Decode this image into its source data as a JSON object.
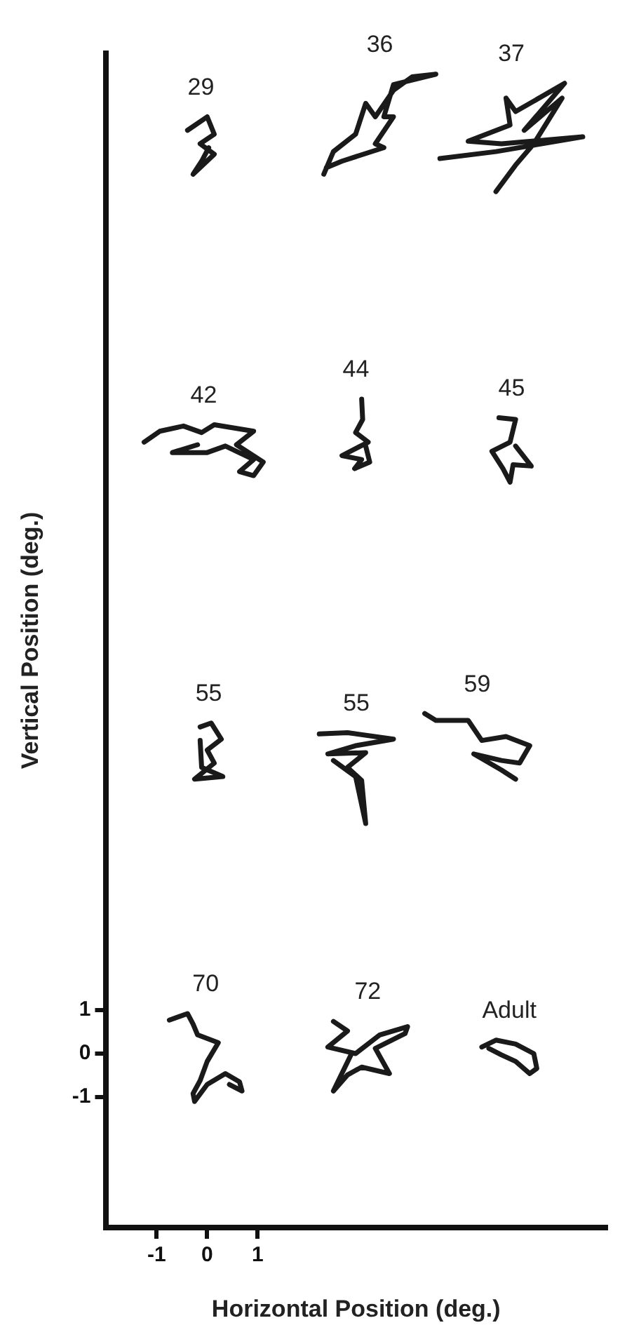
{
  "chart_data": {
    "type": "line",
    "xlabel": "Horizontal Position (deg.)",
    "ylabel": "Vertical Position (deg.)",
    "xlim": [
      -2,
      7.9
    ],
    "ylim": [
      -4,
      23
    ],
    "xticks": [
      -1,
      0,
      1
    ],
    "yticks": [
      -1,
      0,
      1
    ],
    "grid": false,
    "legend": false,
    "marker": "none",
    "line_style": "solid",
    "series": [
      {
        "name": "29",
        "color": "#1a1a1a",
        "x": [
          -0.39,
          0,
          0.14,
          -0.14,
          0.14,
          -0.28,
          -0.11,
          0.03
        ],
        "values": [
          21.23,
          21.54,
          21.14,
          20.92,
          20.68,
          20.22,
          20.52,
          20.83
        ]
      },
      {
        "name": "36",
        "color": "#1a1a1a",
        "x": [
          2.31,
          2.5,
          2.94,
          3.14,
          3.33,
          3.69,
          4.06,
          4.53,
          3.69,
          3.5,
          3.69,
          3.33,
          3.5,
          2.67,
          2.36
        ],
        "values": [
          20.22,
          20.74,
          21.14,
          21.85,
          21.54,
          22.15,
          22.46,
          22.52,
          22.28,
          21.54,
          21.54,
          20.92,
          20.83,
          20.52,
          20.37
        ]
      },
      {
        "name": "37",
        "color": "#1a1a1a",
        "x": [
          4.61,
          5.72,
          7.44,
          5.83,
          5.17,
          6.0,
          5.92,
          6.11,
          7.08,
          6.28,
          7.03,
          6.47,
          6.11,
          5.72
        ],
        "values": [
          20.58,
          20.74,
          21.08,
          20.92,
          20.98,
          21.35,
          21.97,
          21.66,
          22.31,
          21.23,
          21.97,
          20.92,
          20.43,
          19.82
        ]
      },
      {
        "name": "42",
        "color": "#1a1a1a",
        "x": [
          -1.25,
          -0.94,
          -0.47,
          -0.11,
          0.14,
          0.92,
          0.58,
          1.11,
          0.92,
          0.64,
          0.92,
          0.36,
          0,
          -0.69,
          -0.19
        ],
        "values": [
          14.06,
          14.31,
          14.43,
          14.28,
          14.46,
          14.31,
          14.0,
          13.6,
          13.29,
          13.38,
          13.66,
          13.97,
          13.82,
          13.82,
          14.0
        ]
      },
      {
        "name": "44",
        "color": "#1a1a1a",
        "x": [
          3.06,
          3.08,
          2.94,
          3.19,
          2.67,
          3.06,
          2.92,
          3.22,
          3.14
        ],
        "values": [
          15.05,
          14.58,
          14.28,
          14.06,
          13.75,
          13.66,
          13.45,
          13.6,
          13.97
        ]
      },
      {
        "name": "45",
        "color": "#1a1a1a",
        "x": [
          5.78,
          6.11,
          6.0,
          5.64,
          5.86,
          6.0,
          6.06,
          6.42,
          6.11
        ],
        "values": [
          14.62,
          14.58,
          14.06,
          13.85,
          13.45,
          13.14,
          13.54,
          13.51,
          13.97
        ]
      },
      {
        "name": "55",
        "color": "#1a1a1a",
        "x": [
          -0.14,
          0.08,
          0.28,
          0,
          0.14,
          -0.25,
          0.31,
          -0.11,
          -0.14
        ],
        "values": [
          7.51,
          7.6,
          7.23,
          6.98,
          6.68,
          6.31,
          6.37,
          6.58,
          7.2
        ]
      },
      {
        "name": "55",
        "color": "#1a1a1a",
        "x": [
          2.22,
          2.78,
          3.69,
          2.94,
          2.39,
          3.14,
          2.78,
          3.06,
          3.14,
          2.94,
          2.5
        ],
        "values": [
          7.35,
          7.38,
          7.23,
          7.08,
          6.89,
          6.92,
          6.58,
          6.28,
          5.29,
          6.37,
          6.74
        ]
      },
      {
        "name": "59",
        "color": "#1a1a1a",
        "x": [
          4.31,
          4.53,
          5.17,
          5.44,
          5.92,
          6.39,
          6.19,
          5.83,
          5.28,
          5.83,
          6.11
        ],
        "values": [
          7.82,
          7.66,
          7.66,
          7.2,
          7.29,
          7.08,
          6.68,
          6.74,
          6.89,
          6.52,
          6.31
        ]
      },
      {
        "name": "70",
        "color": "#1a1a1a",
        "x": [
          -0.75,
          -0.39,
          -0.28,
          -0.19,
          0.22,
          0,
          -0.14,
          -0.28,
          -0.25,
          0,
          0.36,
          0.64,
          0.69,
          0.44
        ],
        "values": [
          0.77,
          0.92,
          0.68,
          0.43,
          0.25,
          -0.18,
          -0.62,
          -0.92,
          -1.1,
          -0.71,
          -0.46,
          -0.65,
          -0.86,
          -0.71
        ]
      },
      {
        "name": "72",
        "color": "#1a1a1a",
        "x": [
          2.5,
          2.78,
          2.39,
          2.94,
          3.42,
          3.97,
          3.92,
          3.33,
          3.61,
          3.06,
          2.78,
          2.5,
          2.86
        ],
        "values": [
          0.74,
          0.52,
          0.15,
          0,
          0.43,
          0.62,
          0.46,
          0.12,
          -0.46,
          -0.31,
          -0.49,
          -0.86,
          0
        ]
      },
      {
        "name": "Adult",
        "color": "#1a1a1a",
        "x": [
          5.44,
          5.72,
          6.11,
          6.47,
          6.53,
          6.39,
          6.11,
          5.83,
          5.58
        ],
        "values": [
          0.15,
          0.31,
          0.22,
          0,
          -0.34,
          -0.46,
          -0.18,
          -0.03,
          0.12
        ]
      }
    ]
  }
}
